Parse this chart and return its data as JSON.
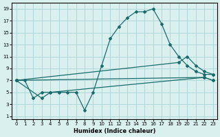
{
  "title": "",
  "xlabel": "Humidex (Indice chaleur)",
  "ylabel": "",
  "background_color": "#d9f0ef",
  "grid_color": "#b0d8d8",
  "line_color": "#1a6b6b",
  "xlim": [
    -0.5,
    23.5
  ],
  "ylim": [
    0.5,
    20
  ],
  "xticks": [
    0,
    1,
    2,
    3,
    4,
    5,
    6,
    7,
    8,
    9,
    10,
    11,
    12,
    13,
    14,
    15,
    16,
    17,
    18,
    19,
    20,
    21,
    22,
    23
  ],
  "yticks": [
    1,
    3,
    5,
    7,
    9,
    11,
    13,
    15,
    17,
    19
  ],
  "line1_x": [
    0,
    1,
    2,
    3,
    4,
    5,
    6,
    7,
    8,
    9,
    10,
    11,
    12,
    13,
    14,
    15,
    16,
    17,
    18,
    19,
    20,
    21,
    22,
    23
  ],
  "line1_y": [
    7,
    7,
    4,
    5,
    5,
    5,
    5,
    5,
    2,
    5,
    9.5,
    14,
    16,
    17.5,
    18.5,
    18.5,
    19,
    16.5,
    13,
    11,
    9.5,
    8.5,
    8,
    8
  ],
  "line2_x": [
    0,
    3,
    4,
    22,
    23
  ],
  "line2_y": [
    7,
    4,
    5,
    7.5,
    7
  ],
  "line3_x": [
    0,
    22,
    23
  ],
  "line3_y": [
    7,
    7.5,
    7
  ],
  "line4_x": [
    0,
    19,
    20,
    21,
    22,
    23
  ],
  "line4_y": [
    7,
    10,
    11,
    9.5,
    8.5,
    8
  ]
}
